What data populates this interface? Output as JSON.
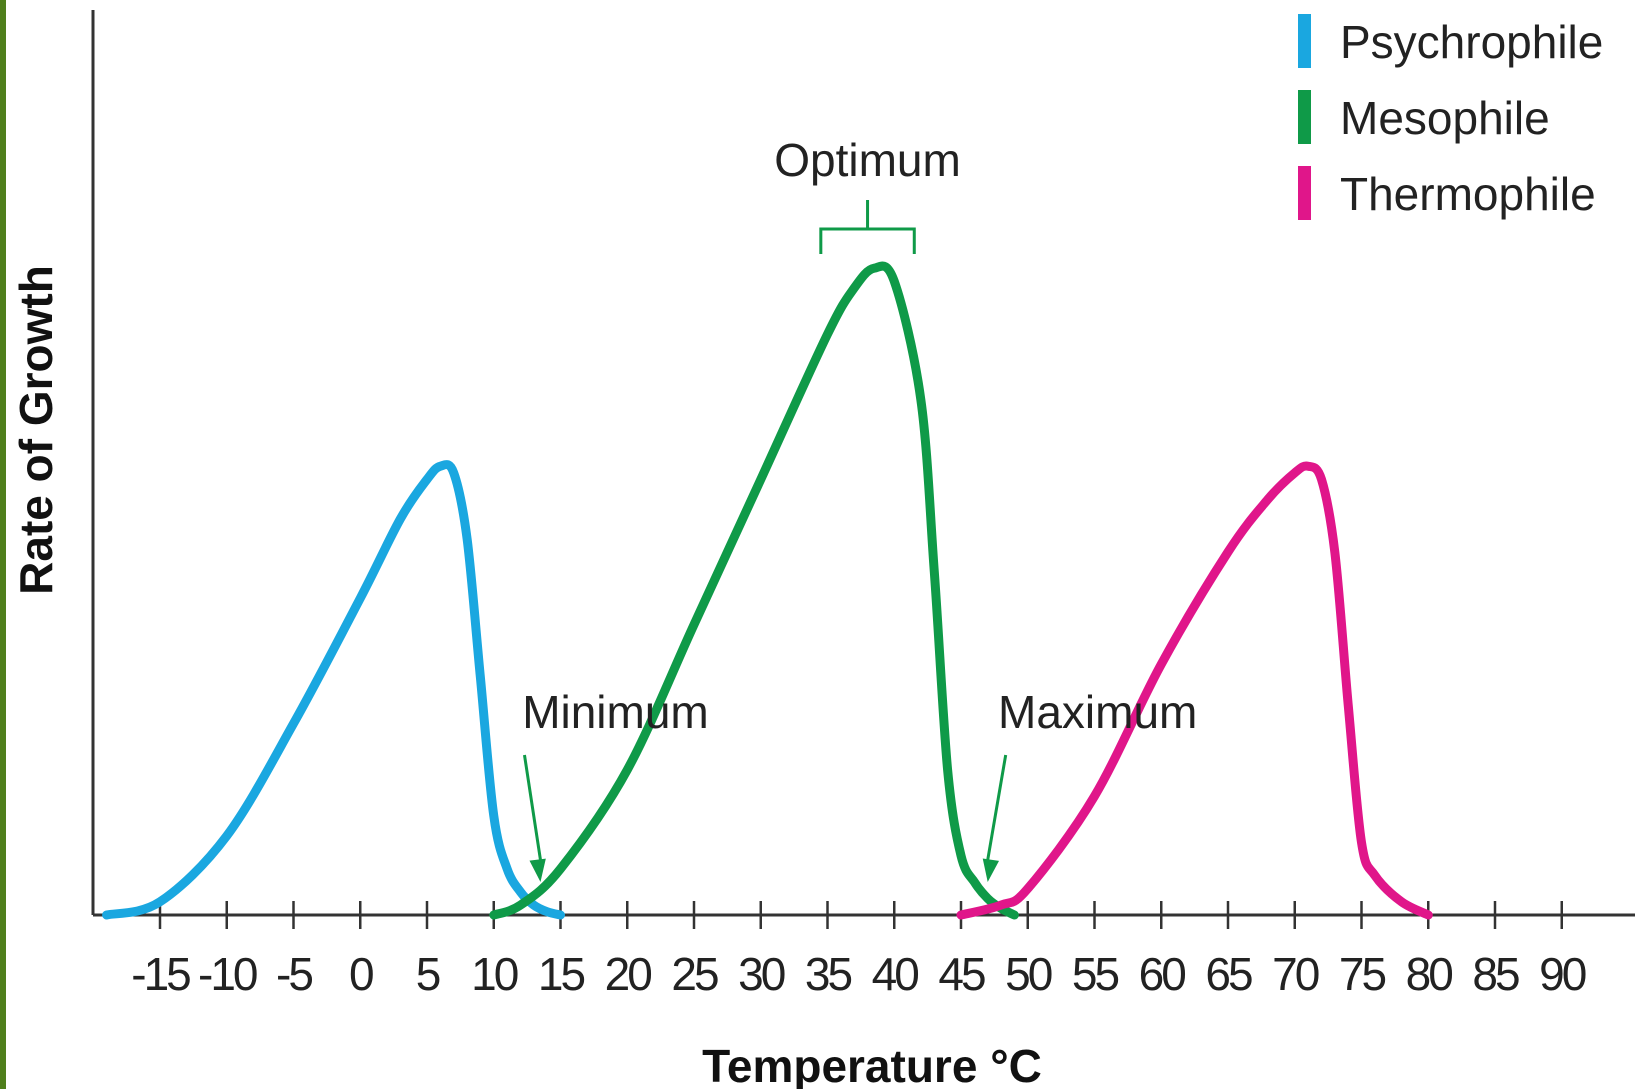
{
  "chart_data": {
    "type": "line",
    "title": "",
    "xlabel": "Temperature °C",
    "ylabel": "Rate of Growth",
    "xlim": [
      -20,
      100
    ],
    "ylim": [
      0,
      1
    ],
    "x_ticks": [
      -15,
      -10,
      -5,
      0,
      5,
      10,
      15,
      20,
      25,
      30,
      35,
      40,
      45,
      50,
      55,
      60,
      65,
      70,
      75,
      80,
      85,
      90
    ],
    "grid": false,
    "legend_position": "top-right",
    "series": [
      {
        "name": "Psychrophile",
        "color": "#1aa7e0",
        "points": [
          [
            -19,
            0.0
          ],
          [
            -15,
            0.02
          ],
          [
            -10,
            0.12
          ],
          [
            -5,
            0.29
          ],
          [
            0,
            0.48
          ],
          [
            3,
            0.6
          ],
          [
            5,
            0.66
          ],
          [
            6,
            0.68
          ],
          [
            7,
            0.67
          ],
          [
            8,
            0.57
          ],
          [
            9,
            0.36
          ],
          [
            10,
            0.15
          ],
          [
            11,
            0.07
          ],
          [
            12,
            0.035
          ],
          [
            13,
            0.015
          ],
          [
            14,
            0.005
          ],
          [
            15,
            0.0
          ]
        ]
      },
      {
        "name": "Mesophile",
        "color": "#0f9a48",
        "points": [
          [
            10,
            0.0
          ],
          [
            12,
            0.015
          ],
          [
            15,
            0.07
          ],
          [
            20,
            0.22
          ],
          [
            25,
            0.44
          ],
          [
            30,
            0.66
          ],
          [
            35,
            0.88
          ],
          [
            37,
            0.95
          ],
          [
            38.5,
            0.98
          ],
          [
            40,
            0.96
          ],
          [
            42,
            0.78
          ],
          [
            43,
            0.52
          ],
          [
            44,
            0.22
          ],
          [
            45,
            0.09
          ],
          [
            46,
            0.05
          ],
          [
            47,
            0.025
          ],
          [
            48,
            0.01
          ],
          [
            49,
            0.0
          ]
        ]
      },
      {
        "name": "Thermophile",
        "color": "#e0168a",
        "points": [
          [
            45,
            0.0
          ],
          [
            48,
            0.015
          ],
          [
            50,
            0.04
          ],
          [
            55,
            0.18
          ],
          [
            60,
            0.38
          ],
          [
            65,
            0.55
          ],
          [
            68,
            0.63
          ],
          [
            70,
            0.67
          ],
          [
            71,
            0.68
          ],
          [
            72,
            0.66
          ],
          [
            73,
            0.55
          ],
          [
            74,
            0.32
          ],
          [
            75,
            0.11
          ],
          [
            76,
            0.06
          ],
          [
            78,
            0.02
          ],
          [
            80,
            0.0
          ]
        ]
      }
    ],
    "annotations": [
      {
        "text": "Optimum",
        "type": "bracket",
        "x_range": [
          34.5,
          41.5
        ]
      },
      {
        "text": "Minimum",
        "type": "arrow",
        "target": [
          13.5,
          0.05
        ]
      },
      {
        "text": "Maximum",
        "type": "arrow",
        "target": [
          47,
          0.05
        ]
      }
    ]
  }
}
